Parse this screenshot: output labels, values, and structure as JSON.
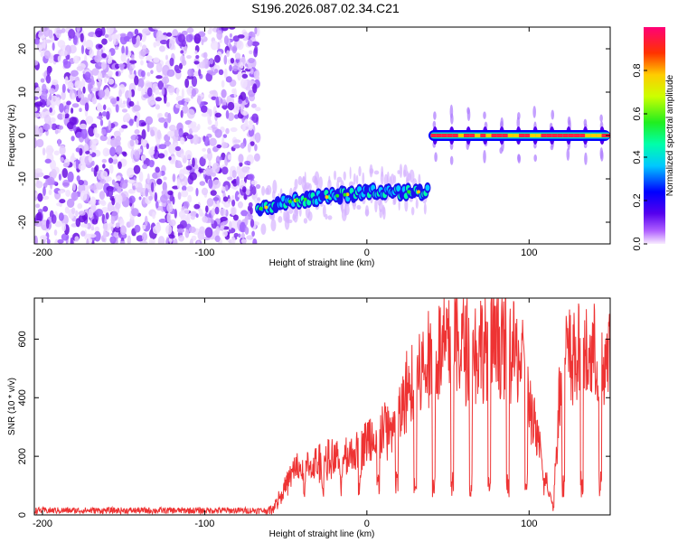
{
  "title": "S196.2026.087.02.34.C21",
  "chart_data": [
    {
      "type": "heatmap",
      "title": "",
      "xlabel": "Height of straight line (km)",
      "ylabel": "Frequency (Hz)",
      "xlim": [
        -205,
        150
      ],
      "ylim": [
        -25,
        25
      ],
      "xticks": [
        -200,
        -100,
        0,
        100
      ],
      "yticks": [
        20,
        10,
        0,
        -10,
        -20
      ],
      "colorbar": {
        "label": "Normalized spectral amplitude",
        "range": [
          0,
          1
        ],
        "ticks": [
          0.0,
          0.2,
          0.4,
          0.6,
          0.8
        ]
      },
      "regions": [
        {
          "name": "noise",
          "x": [
            -205,
            -67
          ],
          "freq_range": [
            -25,
            25
          ],
          "amplitude": 0.05
        },
        {
          "name": "weak-signal",
          "x": [
            -67,
            38
          ],
          "freq_hz": [
            -17,
            -15,
            -14,
            -13,
            -13,
            -13
          ],
          "x_points": [
            -67,
            -45,
            -20,
            0,
            20,
            38
          ],
          "amplitude": 0.4
        },
        {
          "name": "strong-signal",
          "x": [
            38,
            150
          ],
          "freq_hz": 0,
          "amplitude": 0.9
        }
      ]
    },
    {
      "type": "line",
      "title": "",
      "xlabel": "Height of straight line (km)",
      "ylabel": "SNR (10 * v/v)",
      "xlim": [
        -205,
        150
      ],
      "ylim": [
        0,
        740
      ],
      "xticks": [
        -200,
        -100,
        0,
        100
      ],
      "yticks": [
        0,
        200,
        400,
        600
      ],
      "series": [
        {
          "name": "SNR",
          "color": "#ee3333",
          "x": [
            -205,
            -60,
            -55,
            -45,
            -35,
            -25,
            -15,
            -5,
            5,
            15,
            20,
            25,
            35,
            45,
            55,
            65,
            75,
            85,
            95,
            100,
            105,
            110,
            115,
            120,
            130,
            140,
            150
          ],
          "y": [
            15,
            15,
            60,
            180,
            200,
            220,
            240,
            270,
            340,
            360,
            400,
            520,
            600,
            680,
            700,
            690,
            700,
            690,
            640,
            480,
            300,
            160,
            40,
            640,
            650,
            650,
            640
          ]
        }
      ]
    }
  ]
}
